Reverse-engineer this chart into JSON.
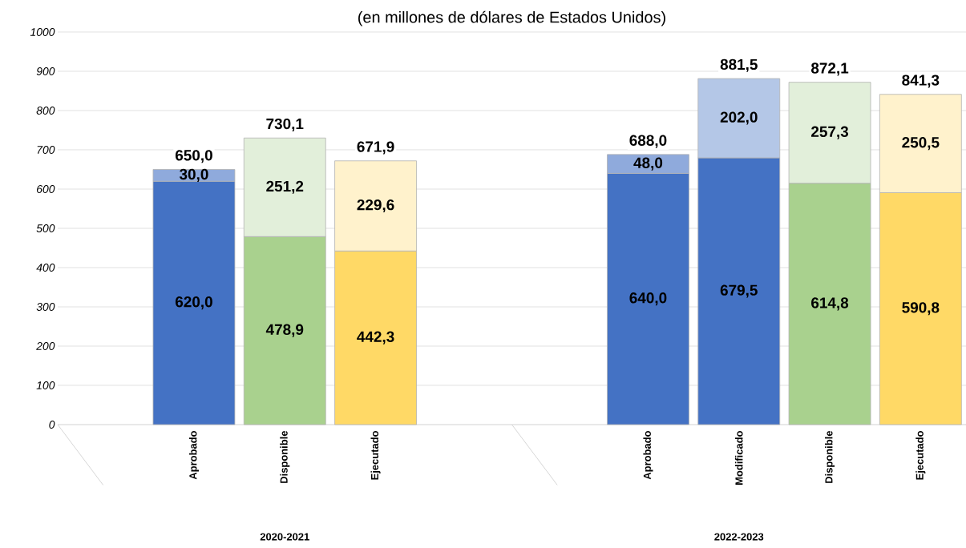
{
  "chart_data": {
    "type": "bar",
    "subtitle": "(en millones de dólares de Estados Unidos)",
    "categories": [
      null,
      "Aprobado",
      "Disponible",
      "Ejecutado",
      null,
      null,
      "Aprobado",
      "Modificado",
      "Disponible",
      "Ejecutado"
    ],
    "stacked": true,
    "series": [
      {
        "values": [
          null,
          620.0,
          478.9,
          442.3,
          null,
          null,
          640.0,
          679.5,
          614.8,
          590.8
        ],
        "colors": [
          "#4472c4",
          "#4472c4",
          "#a9d18e",
          "#ffd966",
          "#4472c4",
          "#4472c4",
          "#4472c4",
          "#4472c4",
          "#a9d18e",
          "#ffd966"
        ],
        "value_labels": [
          null,
          "620,0",
          "478,9",
          "442,3",
          null,
          null,
          "640,0",
          "679,5",
          "614,8",
          "590,8"
        ]
      },
      {
        "values": [
          null,
          30.0,
          251.2,
          229.6,
          null,
          null,
          48.0,
          202.0,
          257.3,
          250.5
        ],
        "colors": [
          "#8faadc",
          "#8faadc",
          "#e2efda",
          "#fff2cc",
          "#8faadc",
          "#8faadc",
          "#8faadc",
          "#b4c7e7",
          "#e2efda",
          "#fff2cc"
        ],
        "value_labels": [
          null,
          "30,0",
          "251,2",
          "229,6",
          null,
          null,
          "48,0",
          "202,0",
          "257,3",
          "250,5"
        ]
      }
    ],
    "totals": [
      null,
      "650,0",
      "730,1",
      "671,9",
      null,
      null,
      "688,0",
      "881,5",
      "872,1",
      "841,3"
    ],
    "ylim": [
      0,
      1000
    ],
    "yticks": [
      0,
      100,
      200,
      300,
      400,
      500,
      600,
      700,
      800,
      900,
      1000
    ],
    "grid": "y",
    "annotations": [
      "2020-2021",
      "2022-2023"
    ]
  }
}
